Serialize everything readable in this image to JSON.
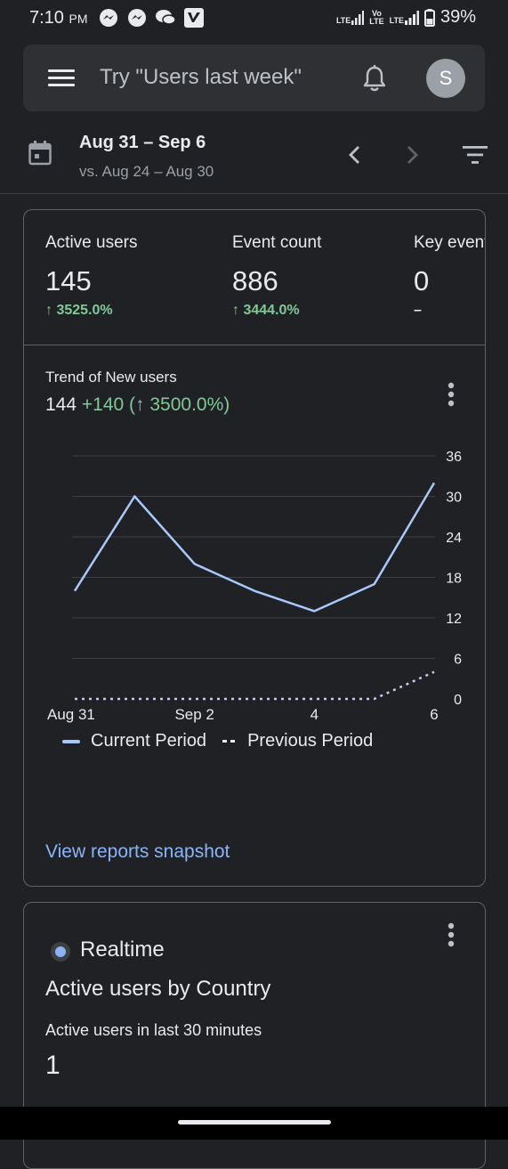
{
  "status_bar": {
    "time": "7:10",
    "ampm": "PM",
    "net1": "LTE",
    "net2_top": "Vo",
    "net2_bottom": "LTE",
    "net3": "LTE",
    "battery": "39%"
  },
  "search": {
    "placeholder": "Try \"Users last week\"",
    "avatar_letter": "S"
  },
  "date": {
    "range": "Aug 31 – Sep 6",
    "compare": "vs. Aug 24 – Aug 30"
  },
  "metrics": [
    {
      "label": "Active users",
      "value": "145",
      "change": "↑ 3525.0%"
    },
    {
      "label": "Event count",
      "value": "886",
      "change": "↑ 3444.0%"
    },
    {
      "label": "Key events",
      "value": "0",
      "change": "–"
    }
  ],
  "trend": {
    "title": "Trend of New users",
    "value": "144",
    "delta": "+140 (↑ 3500.0%)"
  },
  "chart_data": {
    "type": "line",
    "x": [
      "Aug 31",
      "Sep 1",
      "Sep 2",
      "Sep 3",
      "Sep 4",
      "Sep 5",
      "Sep 6"
    ],
    "x_tick_labels": [
      "Aug 31",
      "Sep 2",
      "4",
      "6"
    ],
    "y_ticks": [
      0,
      6,
      12,
      18,
      24,
      30,
      36
    ],
    "ylim": [
      0,
      36
    ],
    "grid": true,
    "series": [
      {
        "name": "Current Period",
        "values": [
          16,
          30,
          20,
          16,
          13,
          17,
          32
        ],
        "style": "solid",
        "color": "#a8c7fa"
      },
      {
        "name": "Previous Period",
        "values": [
          0,
          0,
          0,
          0,
          0,
          0,
          4
        ],
        "style": "dotted",
        "color": "#c5cae9"
      }
    ],
    "legend": [
      "Current Period",
      "Previous Period"
    ]
  },
  "view_link": "View reports snapshot",
  "realtime": {
    "label": "Realtime",
    "title": "Active users by Country",
    "subtitle": "Active users in last 30 minutes",
    "value": "1"
  }
}
